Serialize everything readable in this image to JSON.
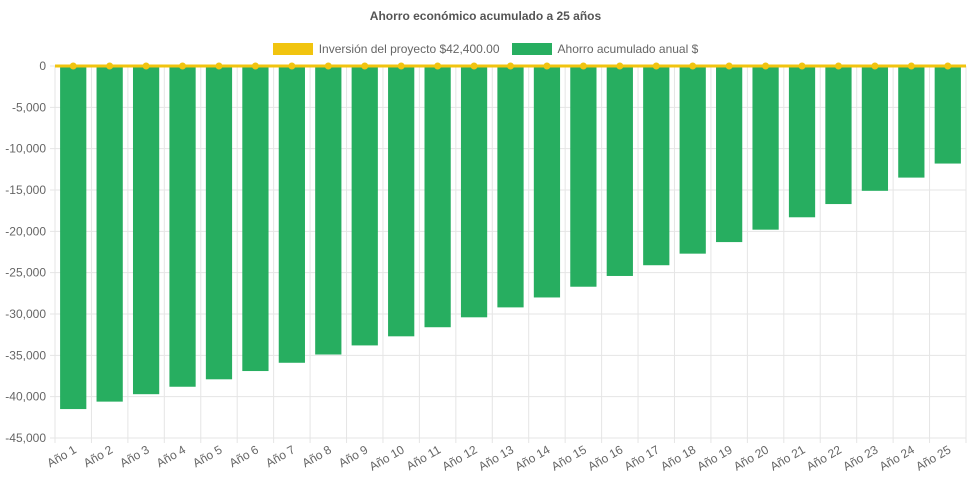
{
  "chart_data": {
    "type": "bar",
    "title": "Ahorro económico acumulado a 25 años",
    "xlabel": "",
    "ylabel": "",
    "ylim": [
      -45000,
      0
    ],
    "yticks": [
      0,
      -5000,
      -10000,
      -15000,
      -20000,
      -25000,
      -30000,
      -35000,
      -40000,
      -45000
    ],
    "ytick_labels": [
      "0",
      "-5,000",
      "-10,000",
      "-15,000",
      "-20,000",
      "-25,000",
      "-30,000",
      "-35,000",
      "-40,000",
      "-45,000"
    ],
    "categories": [
      "Año 1",
      "Año 2",
      "Año 3",
      "Año 4",
      "Año 5",
      "Año 6",
      "Año 7",
      "Año 8",
      "Año 9",
      "Año 10",
      "Año 11",
      "Año 12",
      "Año 13",
      "Año 14",
      "Año 15",
      "Año 16",
      "Año 17",
      "Año 18",
      "Año 19",
      "Año 20",
      "Año 21",
      "Año 22",
      "Año 23",
      "Año 24",
      "Año 25"
    ],
    "legend_position": "top",
    "series": [
      {
        "name": "Inversión del proyecto $42,400.00",
        "type": "line",
        "color": "#f1c40f",
        "values": [
          0,
          0,
          0,
          0,
          0,
          0,
          0,
          0,
          0,
          0,
          0,
          0,
          0,
          0,
          0,
          0,
          0,
          0,
          0,
          0,
          0,
          0,
          0,
          0,
          0
        ]
      },
      {
        "name": "Ahorro acumulado anual $",
        "type": "bar",
        "color": "#27ae60",
        "values": [
          -41500,
          -40600,
          -39700,
          -38800,
          -37900,
          -36900,
          -35900,
          -34900,
          -33800,
          -32700,
          -31600,
          -30400,
          -29200,
          -28000,
          -26700,
          -25400,
          -24100,
          -22700,
          -21300,
          -19800,
          -18300,
          -16700,
          -15100,
          -13500,
          -11800
        ]
      }
    ]
  }
}
